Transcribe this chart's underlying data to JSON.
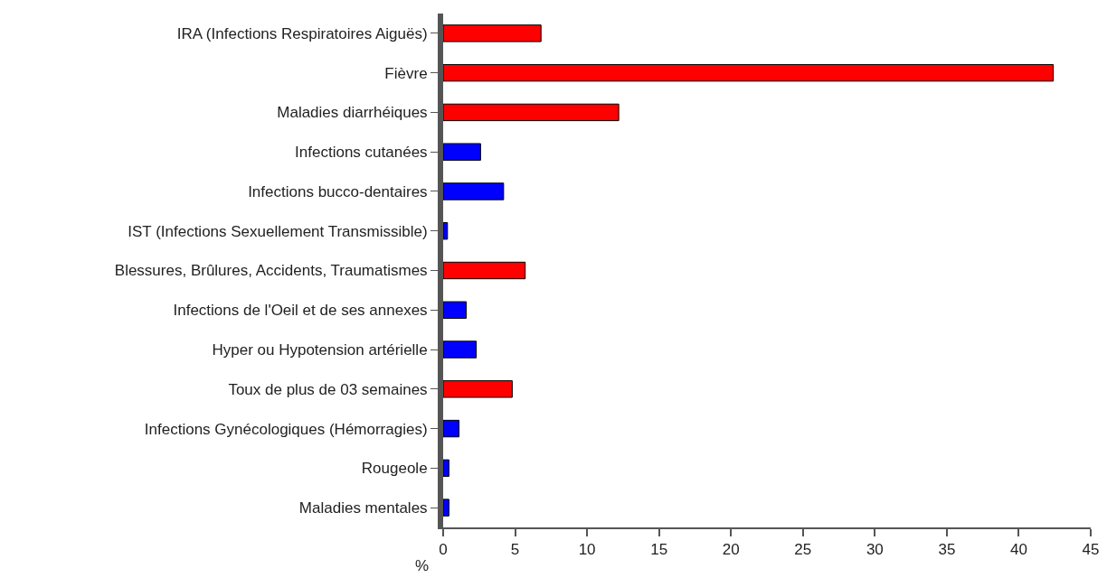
{
  "chart_data": {
    "type": "bar",
    "orientation": "horizontal",
    "xlabel": "%",
    "categories": [
      "IRA (Infections Respiratoires Aiguës)",
      "Fièvre",
      "Maladies diarrhéiques",
      "Infections cutanées",
      "Infections bucco-dentaires",
      "IST (Infections Sexuellement Transmissible)",
      "Blessures, Brûlures, Accidents, Traumatismes",
      "Infections de l'Oeil et de ses annexes",
      "Hyper ou Hypotension artérielle",
      "Toux de plus de 03 semaines",
      "Infections Gynécologiques (Hémorragies)",
      "Rougeole",
      "Maladies mentales"
    ],
    "values": [
      6.8,
      42.4,
      12.2,
      2.6,
      4.2,
      0.3,
      5.7,
      1.6,
      2.3,
      4.8,
      1.1,
      0.4,
      0.4
    ],
    "colors": [
      "#ff0000",
      "#ff0000",
      "#ff0000",
      "#0000ff",
      "#0000ff",
      "#0000ff",
      "#ff0000",
      "#0000ff",
      "#0000ff",
      "#ff0000",
      "#0000ff",
      "#0000ff",
      "#0000ff"
    ],
    "xlim": [
      0,
      45
    ],
    "xticks": [
      0,
      5,
      10,
      15,
      20,
      25,
      30,
      35,
      40,
      45
    ],
    "grid": false
  }
}
